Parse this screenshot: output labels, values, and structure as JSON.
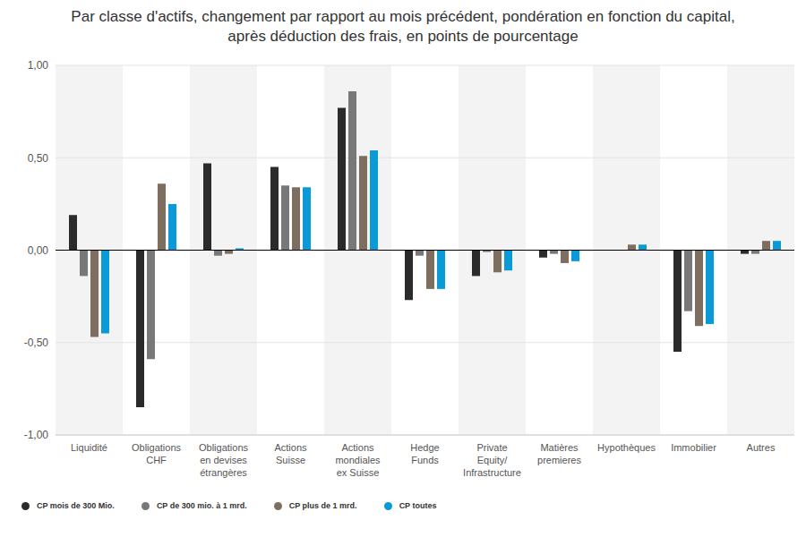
{
  "chart_data": {
    "type": "bar",
    "title": "Par classe d'actifs, changement par rapport au mois précédent, pondération en fonction du capital,\naprès déduction des frais, en points de pourcentage",
    "categories": [
      "Liquidité",
      "Obligations\nCHF",
      "Obligations\nen devises\nétrangères",
      "Actions\nSuisse",
      "Actions\nmondiales\nex Suisse",
      "Hedge\nFunds",
      "Private\nEquity/\nInfrastructure",
      "Matières\npremieres",
      "Hypothèques",
      "Immobilier",
      "Autres"
    ],
    "series": [
      {
        "name": "CP mois de 300 Mio.",
        "color": "#2b2b2b",
        "values": [
          0.19,
          -0.85,
          0.47,
          0.45,
          0.77,
          -0.27,
          -0.14,
          -0.04,
          0,
          -0.55,
          -0.02
        ]
      },
      {
        "name": "CP de 300 mio. à 1 mrd.",
        "color": "#787878",
        "values": [
          -0.14,
          -0.59,
          -0.03,
          0.35,
          0.86,
          -0.03,
          -0.01,
          -0.02,
          0,
          -0.33,
          -0.02
        ]
      },
      {
        "name": "CP plus de 1 mrd.",
        "color": "#7d6e5f",
        "values": [
          -0.47,
          0.36,
          -0.02,
          0.34,
          0.51,
          -0.21,
          -0.12,
          -0.07,
          0.03,
          -0.41,
          0.05
        ]
      },
      {
        "name": "CP toutes",
        "color": "#0a9ad8",
        "values": [
          -0.45,
          0.25,
          0.01,
          0.34,
          0.54,
          -0.21,
          -0.11,
          -0.06,
          0.03,
          -0.4,
          0.05
        ]
      }
    ],
    "ylim": [
      -1,
      1
    ],
    "yticks": [
      {
        "value": -1,
        "label": "-1,00"
      },
      {
        "value": -0.5,
        "label": "-0,50"
      },
      {
        "value": 0,
        "label": "0,00"
      },
      {
        "value": 0.5,
        "label": "0,50"
      },
      {
        "value": 1,
        "label": "1,00"
      }
    ],
    "grid": true,
    "legend": "bottom"
  }
}
